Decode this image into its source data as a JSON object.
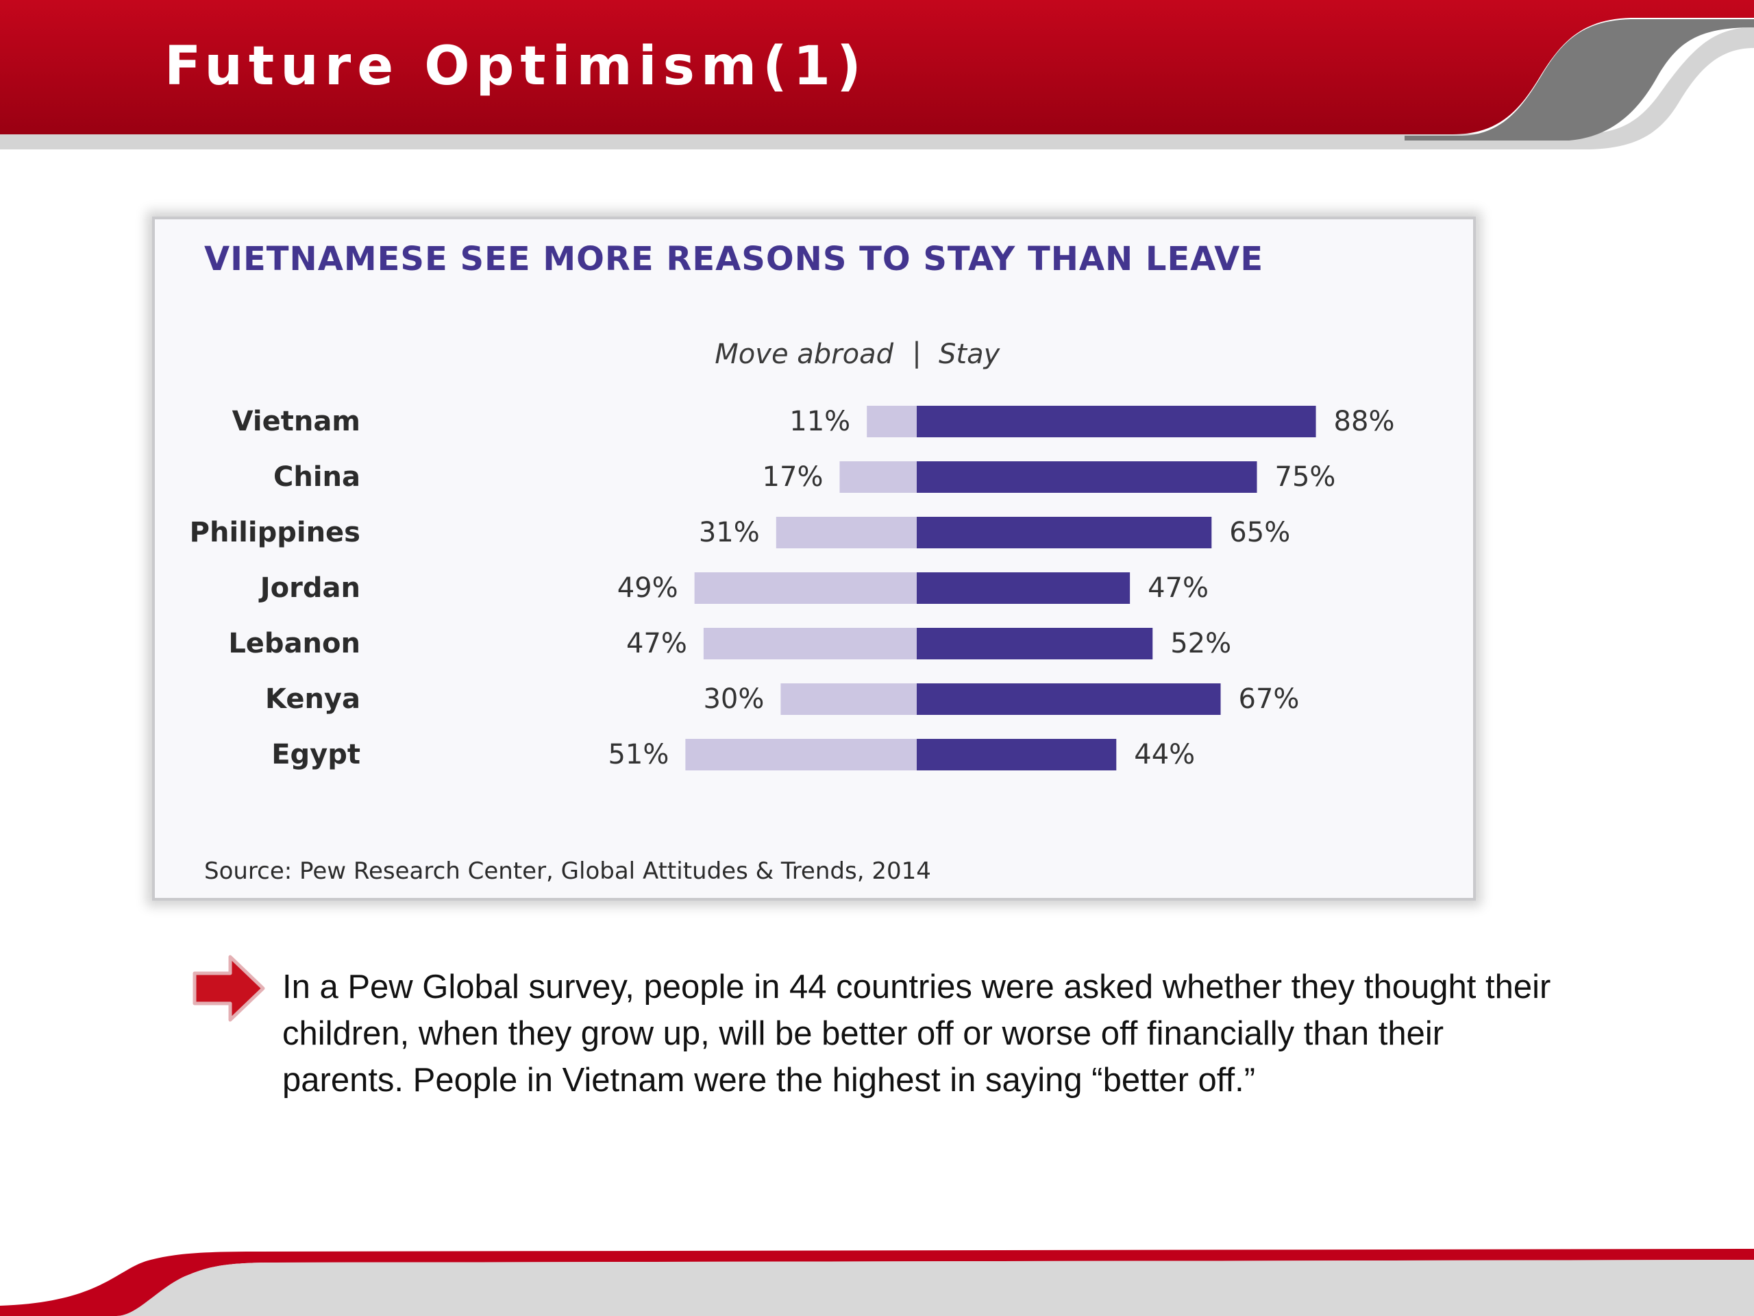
{
  "slide": {
    "title": "Future Optimism(1)",
    "colors": {
      "brand_red": "#c0001a",
      "swoosh_gray": "#d8d8d8"
    }
  },
  "chart_data": {
    "type": "bar",
    "orientation": "horizontal-diverging",
    "title": "VIETNAMESE SEE MORE REASONS TO STAY THAN LEAVE",
    "legend": {
      "left": "Move abroad",
      "separator": "|",
      "right": "Stay"
    },
    "categories": [
      "Vietnam",
      "China",
      "Philippines",
      "Jordan",
      "Lebanon",
      "Kenya",
      "Egypt"
    ],
    "series": [
      {
        "name": "Move abroad",
        "values": [
          11,
          17,
          31,
          49,
          47,
          30,
          51
        ],
        "color": "#ccc6e2",
        "labels": [
          "11%",
          "17%",
          "31%",
          "49%",
          "47%",
          "30%",
          "51%"
        ]
      },
      {
        "name": "Stay",
        "values": [
          88,
          75,
          65,
          47,
          52,
          67,
          44
        ],
        "color": "#43358f",
        "labels": [
          "88%",
          "75%",
          "65%",
          "47%",
          "52%",
          "67%",
          "44%"
        ]
      }
    ],
    "unit": "%",
    "source": "Source: Pew Research Center, Global Attitudes & Trends, 2014"
  },
  "bullet": {
    "icon": "red-arrow-icon",
    "text": "In a Pew Global survey, people in 44 countries were asked whether they thought their children, when they grow up, will be better off or worse off financially than their parents. People in Vietnam were the highest in saying “better off.”"
  }
}
